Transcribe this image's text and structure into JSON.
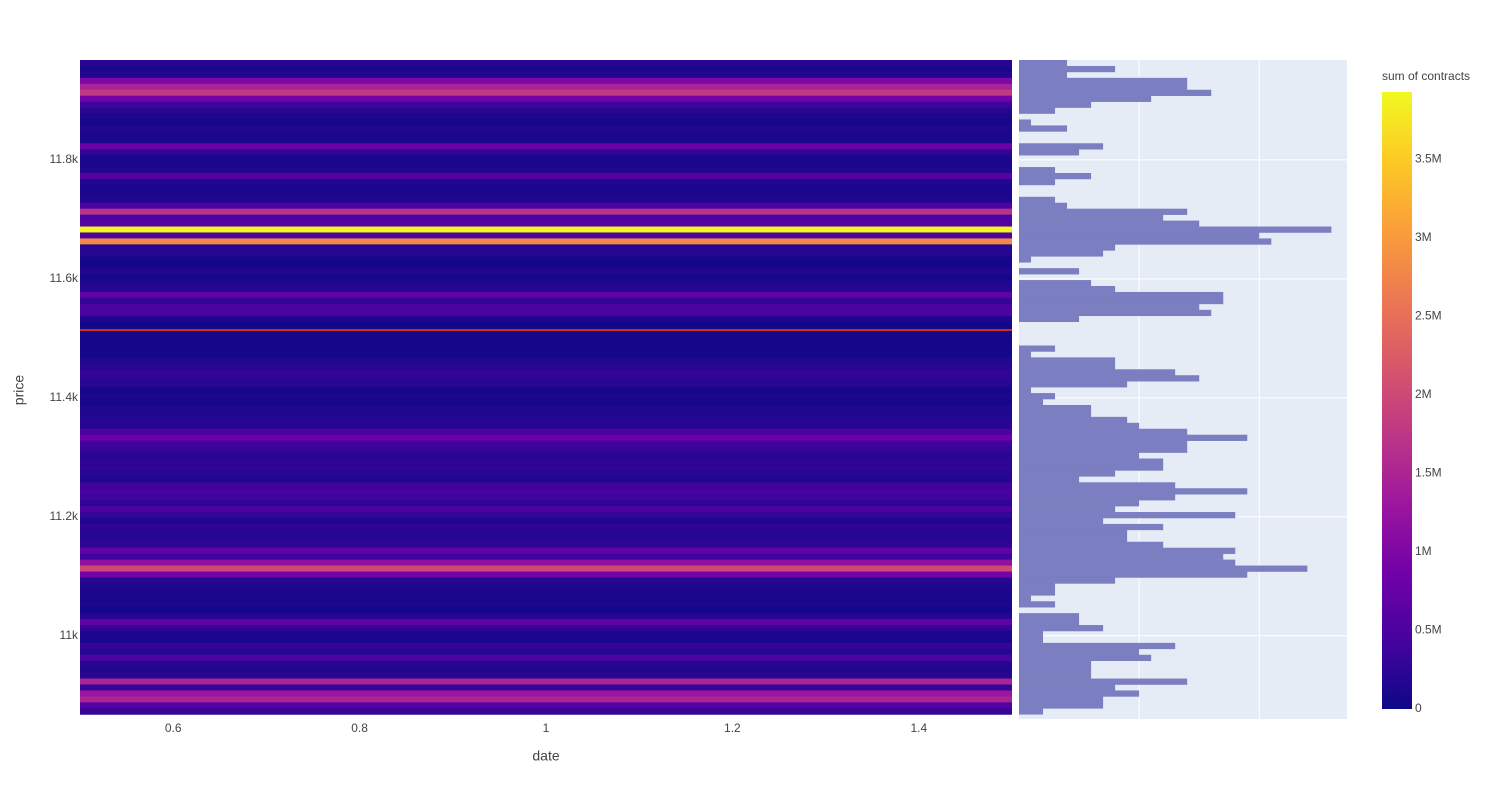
{
  "chart_data": {
    "type": "heatmap",
    "x_label": "date",
    "y_label": "price",
    "x": [
      1
    ],
    "xlim": [
      0.5,
      1.5
    ],
    "xticks": [
      0.6,
      0.8,
      1,
      1.2,
      1.4
    ],
    "ylim": [
      10860,
      11968
    ],
    "yticks": [
      {
        "value": 11000,
        "label": "11k"
      },
      {
        "value": 11200,
        "label": "11.2k"
      },
      {
        "value": 11400,
        "label": "11.4k"
      },
      {
        "value": 11600,
        "label": "11.6k"
      },
      {
        "value": 11800,
        "label": "11.8k"
      }
    ],
    "y_step": 10,
    "y": [
      11963,
      11953,
      11943,
      11933,
      11923,
      11913,
      11903,
      11893,
      11883,
      11873,
      11863,
      11853,
      11843,
      11833,
      11823,
      11813,
      11803,
      11793,
      11783,
      11773,
      11763,
      11753,
      11743,
      11733,
      11723,
      11713,
      11703,
      11693,
      11683,
      11673,
      11663,
      11653,
      11643,
      11633,
      11623,
      11613,
      11603,
      11593,
      11583,
      11573,
      11563,
      11553,
      11543,
      11533,
      11523,
      11513,
      11503,
      11493,
      11483,
      11473,
      11463,
      11453,
      11443,
      11433,
      11423,
      11413,
      11403,
      11393,
      11383,
      11373,
      11363,
      11353,
      11343,
      11333,
      11323,
      11313,
      11303,
      11293,
      11283,
      11273,
      11263,
      11253,
      11243,
      11233,
      11223,
      11213,
      11203,
      11193,
      11183,
      11173,
      11163,
      11153,
      11143,
      11133,
      11123,
      11113,
      11103,
      11093,
      11083,
      11073,
      11063,
      11053,
      11043,
      11033,
      11023,
      11013,
      11003,
      10993,
      10983,
      10973,
      10963,
      10953,
      10943,
      10933,
      10923,
      10913,
      10903,
      10893,
      10883,
      10873
    ],
    "z": [
      200000,
      100000,
      150000,
      1000000,
      1500000,
      1800000,
      900000,
      400000,
      200000,
      100000,
      80000,
      150000,
      100000,
      100000,
      800000,
      250000,
      100000,
      100000,
      150000,
      600000,
      150000,
      100000,
      100000,
      150000,
      500000,
      1700000,
      500000,
      600000,
      3900000,
      500000,
      2800000,
      200000,
      200000,
      80000,
      50000,
      150000,
      50000,
      150000,
      200000,
      700000,
      300000,
      500000,
      500000,
      150000,
      50000,
      50000,
      50000,
      50000,
      80000,
      60000,
      150000,
      200000,
      300000,
      250000,
      200000,
      60000,
      100000,
      80000,
      150000,
      150000,
      200000,
      200000,
      500000,
      800000,
      400000,
      300000,
      200000,
      250000,
      250000,
      200000,
      150000,
      400000,
      450000,
      400000,
      250000,
      500000,
      300000,
      150000,
      250000,
      200000,
      200000,
      250000,
      700000,
      400000,
      1200000,
      2000000,
      900000,
      200000,
      150000,
      100000,
      80000,
      100000,
      50000,
      200000,
      700000,
      300000,
      100000,
      100000,
      300000,
      200000,
      500000,
      200000,
      150000,
      200000,
      1500000,
      300000,
      1300000,
      1500000,
      600000,
      300000
    ],
    "colorscale": [
      "#0d0887",
      "#46039f",
      "#7201a8",
      "#9c179e",
      "#bd3786",
      "#d8576b",
      "#ed7953",
      "#fb9f3a",
      "#fdca26",
      "#f0f921"
    ],
    "colorbar": {
      "title": "sum of contracts",
      "lim": [
        0,
        3930000
      ],
      "ticks": [
        0,
        {
          "value": 500000,
          "label": "0.5M"
        },
        {
          "value": 1000000,
          "label": "1M"
        },
        {
          "value": 1500000,
          "label": "1.5M"
        },
        {
          "value": 2000000,
          "label": "2M"
        },
        {
          "value": 2500000,
          "label": "2.5M"
        },
        {
          "value": 3000000,
          "label": "3M"
        },
        {
          "value": 3500000,
          "label": "3.5M"
        }
      ]
    },
    "reference_line": {
      "y": 11514,
      "color": "#d62728"
    },
    "histogram": {
      "color": "#7b7ec0",
      "xlim": [
        0,
        27.3
      ],
      "xgrid": [
        10,
        20
      ],
      "values": [
        4,
        8,
        4,
        14,
        14,
        16,
        11,
        6,
        3,
        0,
        1,
        4,
        0,
        0,
        7,
        5,
        0,
        0,
        3,
        6,
        3,
        0,
        0,
        3,
        4,
        14,
        12,
        15,
        26,
        20,
        21,
        8,
        7,
        1,
        0,
        5,
        0,
        6,
        8,
        17,
        17,
        15,
        16,
        5,
        0,
        0,
        0,
        0,
        3,
        1,
        8,
        8,
        13,
        15,
        9,
        1,
        3,
        2,
        6,
        6,
        9,
        10,
        14,
        19,
        14,
        14,
        10,
        12,
        12,
        8,
        5,
        13,
        19,
        13,
        10,
        8,
        18,
        7,
        12,
        9,
        9,
        12,
        18,
        17,
        18,
        24,
        19,
        8,
        3,
        3,
        1,
        3,
        0,
        5,
        5,
        7,
        2,
        2,
        13,
        10,
        11,
        6,
        6,
        6,
        14,
        8,
        10,
        7,
        7,
        2
      ]
    }
  }
}
